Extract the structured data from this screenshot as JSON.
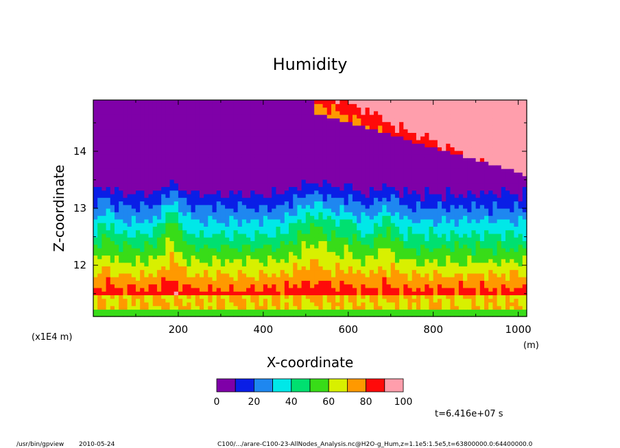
{
  "chart_data": {
    "type": "heatmap",
    "title": "Humidity",
    "xlabel": "X-coordinate",
    "ylabel": "Z-coordinate",
    "x_unit": "(m)",
    "y_scale_note": "(x1E4 m)",
    "xlim": [
      0,
      1020
    ],
    "ylim": [
      11.1,
      14.9
    ],
    "x_ticks": [
      200,
      400,
      600,
      800,
      1000
    ],
    "y_ticks": [
      12,
      13,
      14
    ],
    "levels": [
      0,
      10,
      20,
      30,
      40,
      50,
      60,
      70,
      80,
      90,
      100
    ],
    "colorbar_ticks": [
      0,
      20,
      40,
      60,
      80,
      100
    ],
    "level_colors": [
      "#7f00a8",
      "#0a1ee6",
      "#1e87f0",
      "#00e8e8",
      "#00e070",
      "#38dc18",
      "#d8f000",
      "#ff9900",
      "#ff0a0a",
      "#ff9eac"
    ],
    "annotation": "t=6.416e+07 s"
  },
  "footer": {
    "left_program": "/usr/bin/gpview",
    "left_date": "2010-05-24",
    "right_path": "C100/.../arare-C100-23-AllNodes_Analysis.nc@H2O-g_Hum,z=1.1e5:1.5e5,t=63800000.0:64400000.0"
  }
}
